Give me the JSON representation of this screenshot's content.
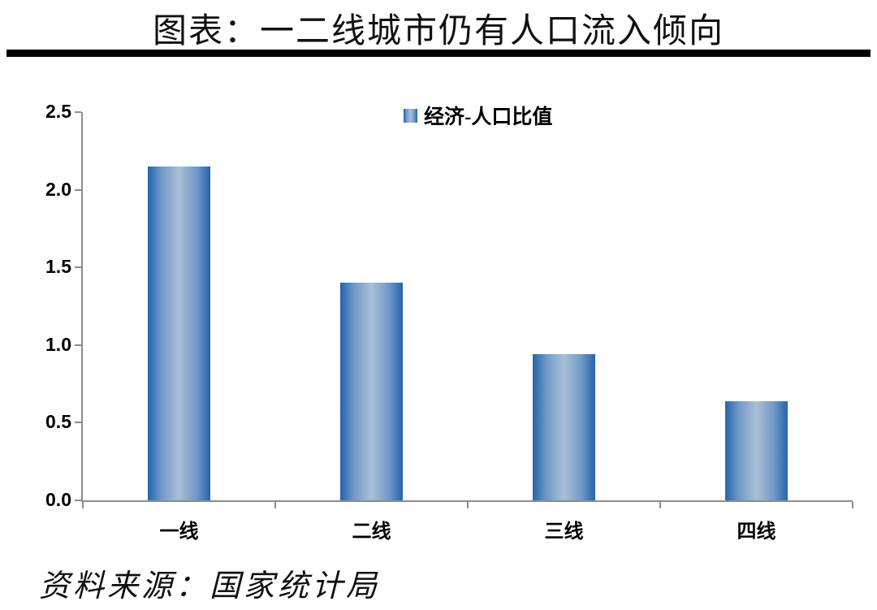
{
  "header": {
    "title": "图表：一二线城市仍有人口流入倾向"
  },
  "legend": {
    "label": "经济-人口比值"
  },
  "footer": {
    "source": "资料来源：国家统计局"
  },
  "colors": {
    "axis": "#8c8c8c",
    "divider": "#000000",
    "text": "#000000",
    "bar_edge": "#2464ab",
    "bar_mid": "#7099c7",
    "bar_center": "#abc0d6"
  },
  "chart_data": {
    "type": "bar",
    "title": "图表：一二线城市仍有人口流入倾向",
    "categories": [
      "一线",
      "二线",
      "三线",
      "四线"
    ],
    "series": [
      {
        "name": "经济-人口比值",
        "values": [
          2.15,
          1.4,
          0.94,
          0.64
        ]
      }
    ],
    "xlabel": "",
    "ylabel": "",
    "ylim": [
      0,
      2.5
    ],
    "yticks": [
      0,
      0.5,
      1,
      1.5,
      2,
      2.5
    ],
    "ytick_labels": [
      "0.0",
      "0.5",
      "1.0",
      "1.5",
      "2.0",
      "2.5"
    ],
    "grid": false,
    "legend_position": "top-center",
    "source": "资料来源：国家统计局"
  }
}
